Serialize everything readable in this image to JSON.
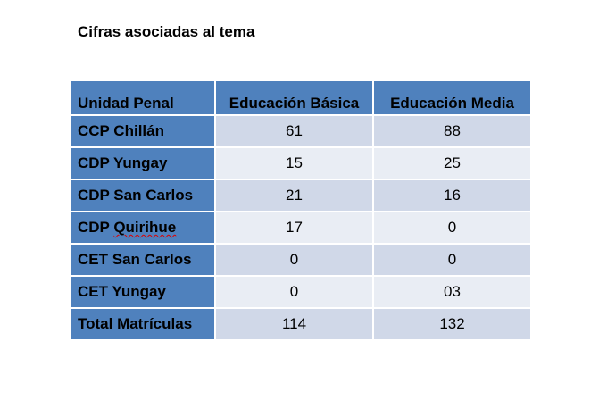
{
  "title": "Cifras asociadas al tema",
  "table": {
    "header": [
      "Unidad Penal",
      "Educación Básica",
      "Educación Media"
    ],
    "rows": [
      [
        "CCP Chillán",
        "61",
        "88"
      ],
      [
        "CDP Yungay",
        "15",
        "25"
      ],
      [
        "CDP San Carlos",
        "21",
        "16"
      ],
      [
        "CDP Quirihue",
        "17",
        "0"
      ],
      [
        "CET San Carlos",
        "0",
        "0"
      ],
      [
        "CET Yungay",
        "0",
        "03"
      ],
      [
        "Total Matrículas",
        "114",
        "132"
      ]
    ]
  }
}
